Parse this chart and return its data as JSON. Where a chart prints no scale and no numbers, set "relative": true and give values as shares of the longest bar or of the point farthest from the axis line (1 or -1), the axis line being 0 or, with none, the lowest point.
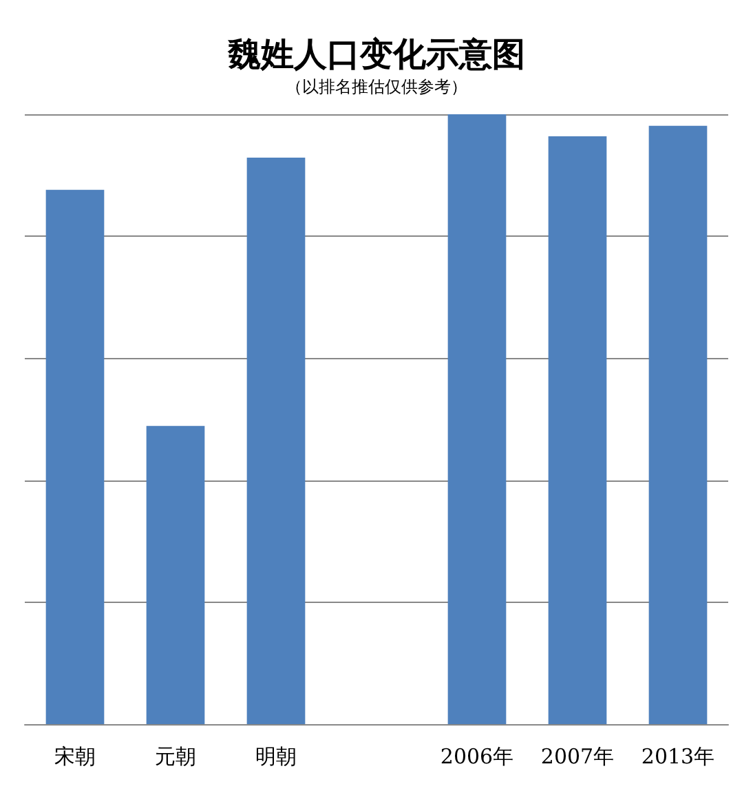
{
  "chart_data": {
    "type": "bar",
    "title": "魏姓人口变化示意图",
    "subtitle": "（以排名推估仅供参考）",
    "categories": [
      "宋朝",
      "元朝",
      "明朝",
      null,
      "2006年",
      "2007年",
      "2013年"
    ],
    "values": [
      0.876,
      0.489,
      0.929,
      null,
      1,
      0.964,
      0.981
    ],
    "color": "#4f81bd",
    "relative": true,
    "grid": "y"
  }
}
